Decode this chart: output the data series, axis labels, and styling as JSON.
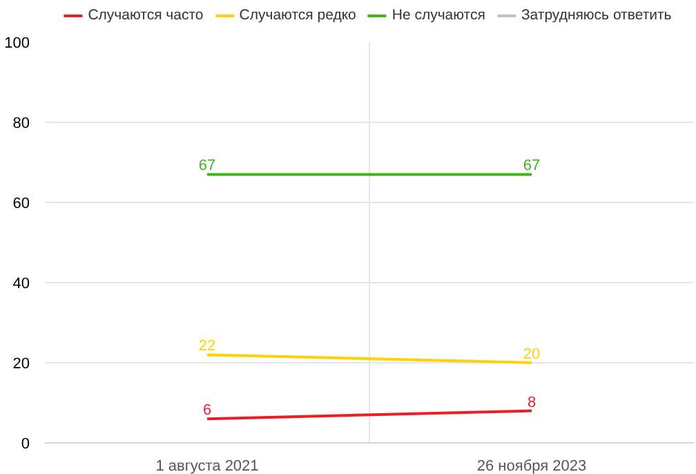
{
  "chart_data": {
    "type": "line",
    "categories": [
      "1 августа 2021",
      "26 ноября 2023"
    ],
    "series": [
      {
        "name": "Случаются часто",
        "color": "#ee1c25",
        "values": [
          6,
          8
        ]
      },
      {
        "name": "Случаются редко",
        "color": "#ffd200",
        "values": [
          22,
          20
        ]
      },
      {
        "name": "Не случаются",
        "color": "#3fb618",
        "values": [
          67,
          67
        ]
      },
      {
        "name": "Затрудняюсь ответить",
        "color": "#c0c0c0",
        "values": [
          null,
          null
        ]
      }
    ],
    "ylim": [
      0,
      100
    ],
    "yticks": [
      0,
      20,
      40,
      60,
      80,
      100
    ],
    "grid": true,
    "legend": "top",
    "data_labels": true,
    "marker": "none",
    "line_style": "solid"
  }
}
